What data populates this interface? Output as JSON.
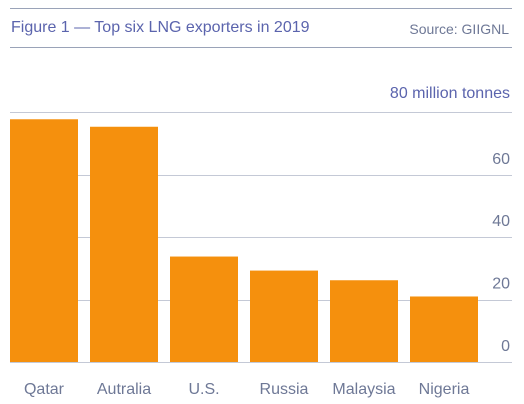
{
  "header": {
    "title": "Figure 1 — Top six LNG exporters in 2019",
    "source": "Source: GIIGNL"
  },
  "chart_data": {
    "type": "bar",
    "title": "Figure 1 — Top six LNG exporters in 2019",
    "unit_label": "80 million tonnes",
    "categories": [
      "Qatar",
      "Autralia",
      "U.S.",
      "Russia",
      "Malaysia",
      "Nigeria"
    ],
    "values": [
      77.8,
      75.4,
      33.8,
      29.3,
      26.2,
      21.0
    ],
    "yticks": [
      0,
      20,
      40,
      60
    ],
    "ylim": [
      0,
      80
    ],
    "grid": true,
    "xlabel": "",
    "ylabel": "",
    "colors": {
      "bar": "#f5900d",
      "grid": "#c4c9d6",
      "axis_text": "#6e7896",
      "unit_text": "#5b64ad"
    }
  }
}
